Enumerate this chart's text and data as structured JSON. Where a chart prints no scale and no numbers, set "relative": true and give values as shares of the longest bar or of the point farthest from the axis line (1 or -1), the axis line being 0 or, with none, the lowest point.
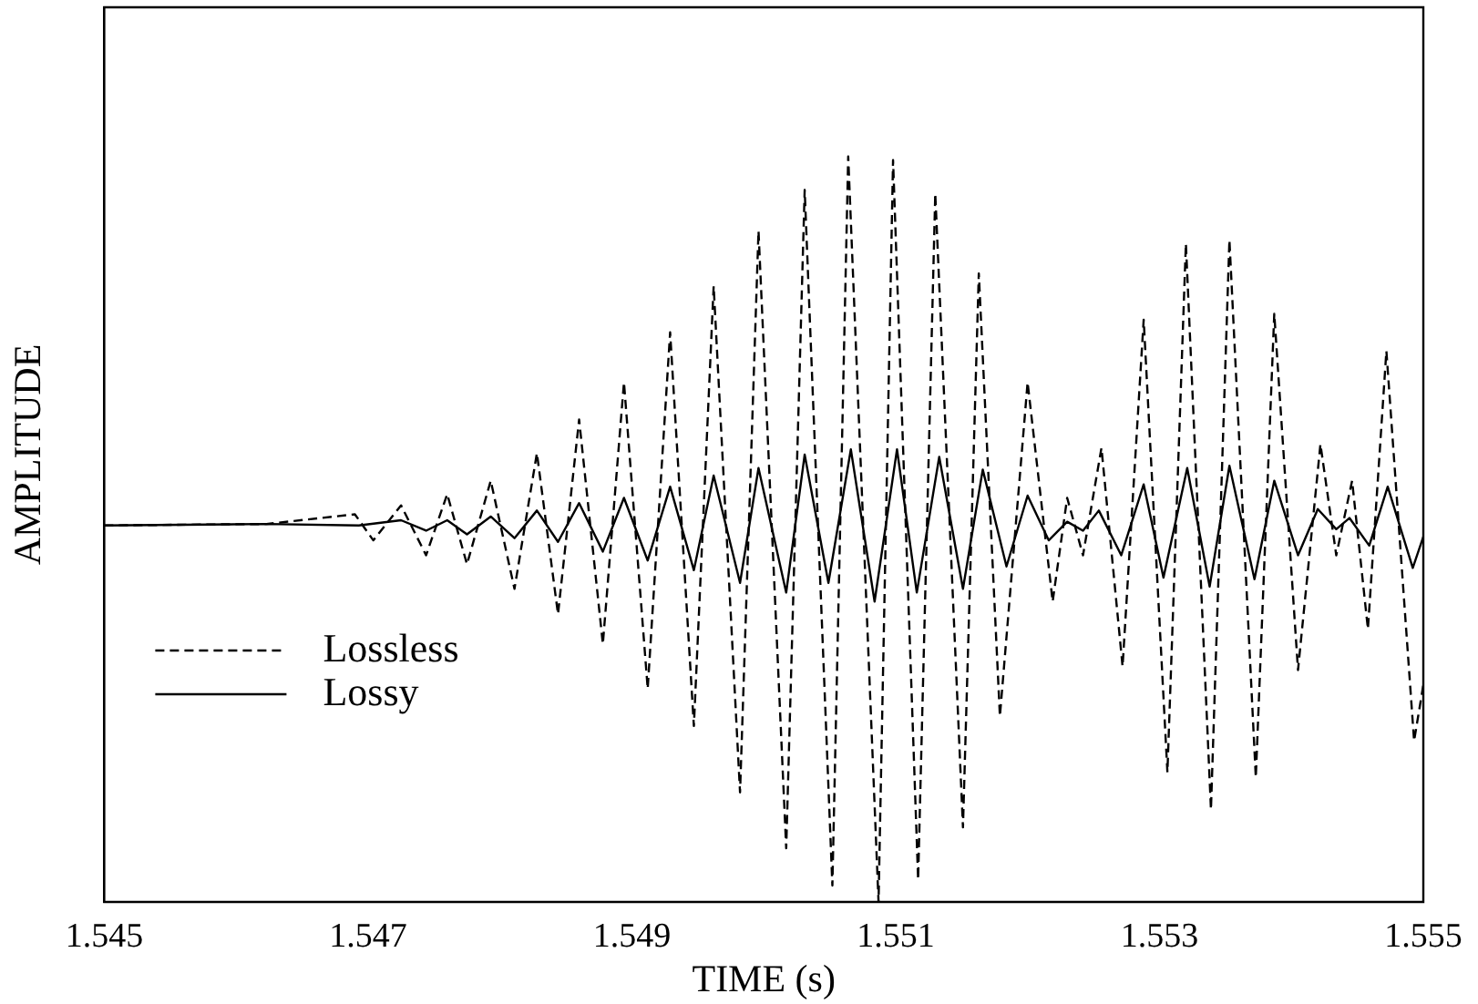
{
  "chart_data": {
    "type": "line",
    "xlabel": "TIME (s)",
    "ylabel": "AMPLITUDE",
    "relative": true,
    "xlim": [
      1.545,
      1.555
    ],
    "xticks": [
      1.545,
      1.547,
      1.549,
      1.551,
      1.553,
      1.555
    ],
    "grid": false,
    "legend": "bottom left",
    "marker": "none",
    "series": [
      {
        "name": "Lossless",
        "color": "#000000",
        "line_style": "dashed",
        "x": [
          1.545,
          1.54623,
          1.5469,
          1.54704,
          1.54725,
          1.54744,
          1.5476,
          1.54775,
          1.54793,
          1.54811,
          1.54828,
          1.54844,
          1.5486,
          1.54878,
          1.54894,
          1.54912,
          1.54929,
          1.54947,
          1.54962,
          1.54982,
          1.54996,
          1.55017,
          1.55031,
          1.55052,
          1.55064,
          1.55087,
          1.55098,
          1.55117,
          1.5513,
          1.55151,
          1.55163,
          1.55179,
          1.552,
          1.55219,
          1.5523,
          1.55242,
          1.55256,
          1.55272,
          1.55288,
          1.55306,
          1.5532,
          1.55339,
          1.55353,
          1.55373,
          1.55387,
          1.55405,
          1.55422,
          1.55434,
          1.55446,
          1.55458,
          1.55472,
          1.55493,
          1.555
        ],
        "values": [
          0.505,
          0.507,
          0.52,
          0.485,
          0.532,
          0.465,
          0.547,
          0.453,
          0.565,
          0.42,
          0.602,
          0.386,
          0.647,
          0.346,
          0.697,
          0.286,
          0.764,
          0.236,
          0.826,
          0.147,
          0.9,
          0.072,
          0.955,
          0.022,
          1,
          0,
          0.995,
          0.03,
          0.95,
          0.1,
          0.843,
          0.249,
          0.697,
          0.403,
          0.542,
          0.465,
          0.609,
          0.316,
          0.781,
          0.174,
          0.883,
          0.124,
          0.888,
          0.167,
          0.789,
          0.311,
          0.614,
          0.465,
          0.565,
          0.366,
          0.739,
          0.216,
          0.291
        ]
      },
      {
        "name": "Lossy",
        "color": "#000000",
        "line_style": "solid",
        "x": [
          1.545,
          1.54623,
          1.54693,
          1.54725,
          1.54744,
          1.5476,
          1.54775,
          1.54793,
          1.54811,
          1.54828,
          1.54844,
          1.5486,
          1.54878,
          1.54894,
          1.54912,
          1.54929,
          1.54947,
          1.54962,
          1.54982,
          1.54996,
          1.55017,
          1.55031,
          1.55049,
          1.55066,
          1.55084,
          1.55101,
          1.55116,
          1.55133,
          1.55151,
          1.55166,
          1.55184,
          1.552,
          1.55216,
          1.5523,
          1.55242,
          1.55254,
          1.55271,
          1.55288,
          1.55303,
          1.55321,
          1.55338,
          1.55353,
          1.55372,
          1.55387,
          1.55405,
          1.5542,
          1.55434,
          1.55444,
          1.55459,
          1.55473,
          1.55492,
          1.555
        ],
        "values": [
          0.505,
          0.507,
          0.505,
          0.512,
          0.498,
          0.512,
          0.493,
          0.517,
          0.488,
          0.525,
          0.483,
          0.535,
          0.47,
          0.542,
          0.458,
          0.557,
          0.445,
          0.572,
          0.428,
          0.582,
          0.415,
          0.6,
          0.428,
          0.607,
          0.403,
          0.607,
          0.415,
          0.597,
          0.42,
          0.58,
          0.45,
          0.545,
          0.485,
          0.51,
          0.498,
          0.525,
          0.465,
          0.56,
          0.435,
          0.582,
          0.423,
          0.585,
          0.433,
          0.565,
          0.465,
          0.527,
          0.5,
          0.515,
          0.478,
          0.557,
          0.448,
          0.49
        ]
      }
    ]
  }
}
